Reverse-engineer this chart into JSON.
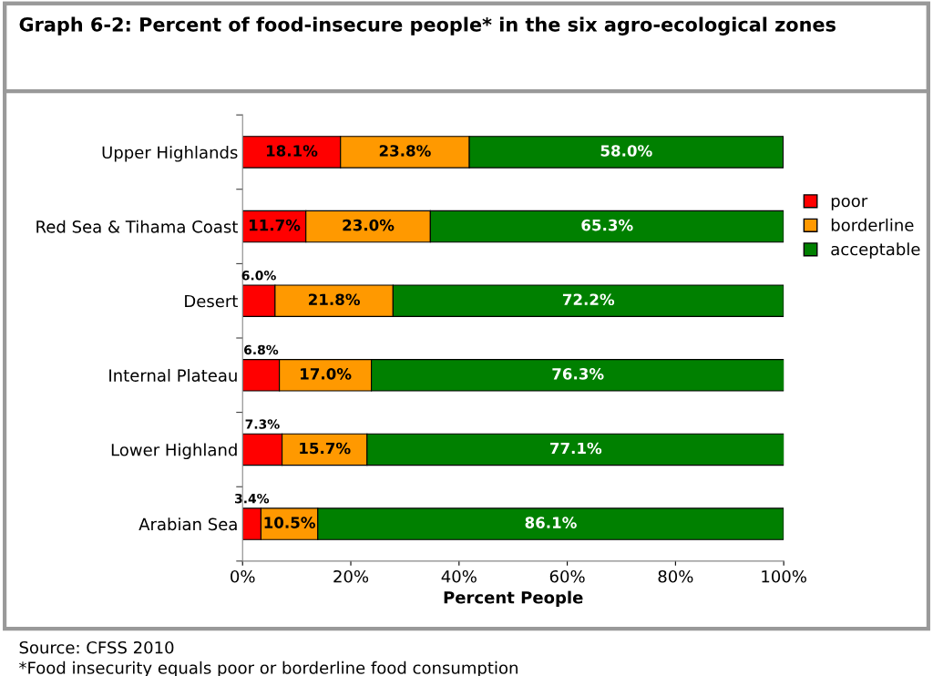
{
  "chart_data": {
    "type": "bar",
    "orientation": "horizontal",
    "stacked": true,
    "title": "Graph 6-2: Percent of food-insecure people* in the six agro-ecological zones",
    "xlabel": "Percent People",
    "categories": [
      "Upper Highlands",
      "Red Sea & Tihama Coast",
      "Desert",
      "Internal Plateau",
      "Lower Highland",
      "Arabian Sea"
    ],
    "series": [
      {
        "name": "poor",
        "color": "#ff0000",
        "values": [
          18.1,
          11.7,
          6.0,
          6.8,
          7.3,
          3.4
        ],
        "value_labels": [
          "18.1%",
          "11.7%",
          "6.0%",
          "6.8%",
          "7.3%",
          "3.4%"
        ]
      },
      {
        "name": "borderline",
        "color": "#ff9900",
        "values": [
          23.8,
          23.0,
          21.8,
          17.0,
          15.7,
          10.5
        ],
        "value_labels": [
          "23.8%",
          "23.0%",
          "21.8%",
          "17.0%",
          "15.7%",
          "10.5%"
        ]
      },
      {
        "name": "acceptable",
        "color": "#008000",
        "values": [
          58.0,
          65.3,
          72.2,
          76.3,
          77.1,
          86.1
        ],
        "value_labels": [
          "58.0%",
          "65.3%",
          "72.2%",
          "76.3%",
          "77.1%",
          "86.1%"
        ]
      }
    ],
    "xlim": [
      0,
      100
    ],
    "xticks": [
      {
        "value": 0,
        "label": "0%"
      },
      {
        "value": 20,
        "label": "20%"
      },
      {
        "value": 40,
        "label": "40%"
      },
      {
        "value": 60,
        "label": "60%"
      },
      {
        "value": 80,
        "label": "80%"
      },
      {
        "value": 100,
        "label": "100%"
      }
    ],
    "legend": "right",
    "annotations": [
      "Source: CFSS 2010",
      "*Food insecurity equals poor or borderline food consumption"
    ]
  }
}
